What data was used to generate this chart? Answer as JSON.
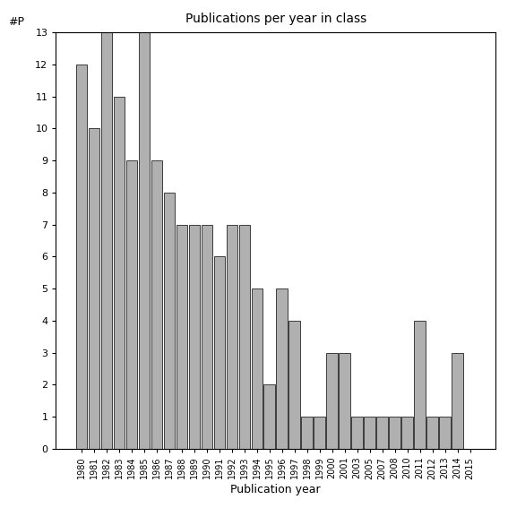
{
  "title": "Publications per year in class",
  "xlabel": "Publication year",
  "ylabel": "#P",
  "year_data": {
    "1980": 12,
    "1981": 10,
    "1982": 13,
    "1983": 11,
    "1984": 9,
    "1985": 13,
    "1986": 9,
    "1987": 8,
    "1988": 7,
    "1989": 7,
    "1990": 7,
    "1991": 6,
    "1992": 7,
    "1993": 7,
    "1994": 5,
    "1995": 2,
    "1996": 5,
    "1997": 4,
    "1998": 1,
    "1999": 1,
    "2000": 3,
    "2001": 3,
    "2003": 1,
    "2005": 1,
    "2007": 1,
    "2008": 1,
    "2010": 1,
    "2011": 4,
    "2012": 1,
    "2013": 1,
    "2014": 3,
    "2015": 0
  },
  "bar_color": "#b0b0b0",
  "bar_edge_color": "#000000",
  "ylim": [
    0,
    13
  ],
  "yticks": [
    0,
    1,
    2,
    3,
    4,
    5,
    6,
    7,
    8,
    9,
    10,
    11,
    12,
    13
  ],
  "background_color": "#ffffff",
  "figsize": [
    5.67,
    5.67
  ],
  "dpi": 100
}
